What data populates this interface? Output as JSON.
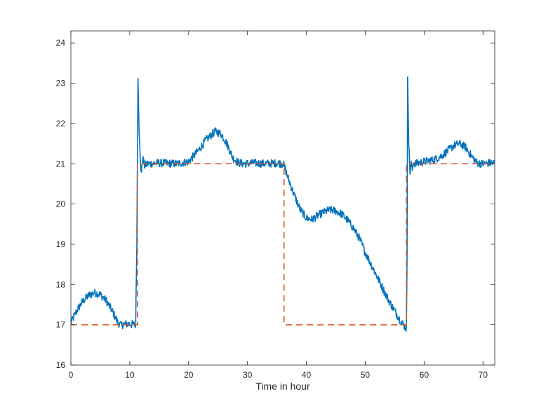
{
  "chart_data": {
    "type": "line",
    "title": "",
    "xlabel": "Time in hour",
    "ylabel": "",
    "xlim": [
      0,
      72
    ],
    "ylim": [
      16,
      24.3
    ],
    "x_ticks": [
      0,
      10,
      20,
      30,
      40,
      50,
      60,
      70
    ],
    "y_ticks": [
      16,
      17,
      18,
      19,
      20,
      21,
      22,
      23,
      24
    ],
    "grid": false,
    "legend": "none",
    "series": [
      {
        "style": "solid",
        "color": "#0072BD",
        "noise_amplitude": 0.1,
        "x": [
          0,
          1,
          2,
          3,
          4,
          5,
          6,
          7,
          8,
          8.6,
          9,
          10,
          11,
          11.2,
          11.4,
          11.6,
          11.8,
          12,
          12.2,
          12.5,
          13,
          15,
          18,
          20,
          21.5,
          23,
          24.5,
          25.5,
          26.5,
          27.5,
          28.5,
          29.5,
          31,
          33,
          35,
          36.1,
          37,
          38,
          39,
          40,
          41,
          42,
          43,
          44,
          45,
          46,
          47,
          48,
          49,
          50,
          52,
          54,
          56,
          57,
          57.1,
          57.2,
          57.4,
          57.6,
          57.8,
          58,
          58.2,
          58.5,
          59,
          60,
          61,
          62,
          63,
          64,
          65,
          66,
          67,
          68,
          69,
          70,
          71,
          72
        ],
        "y": [
          17.05,
          17.35,
          17.58,
          17.73,
          17.8,
          17.75,
          17.6,
          17.35,
          17.05,
          16.98,
          17.02,
          17.02,
          17.0,
          19.0,
          23.2,
          21.8,
          21.0,
          20.8,
          21.15,
          20.95,
          21.0,
          21.02,
          21.0,
          21.05,
          21.3,
          21.6,
          21.8,
          21.75,
          21.5,
          21.15,
          21.02,
          21.0,
          21.02,
          21.0,
          21.02,
          21.0,
          20.6,
          20.2,
          19.85,
          19.65,
          19.62,
          19.72,
          19.8,
          19.85,
          19.83,
          19.75,
          19.6,
          19.4,
          19.15,
          18.8,
          18.2,
          17.6,
          17.1,
          16.9,
          18.5,
          23.2,
          21.5,
          20.8,
          21.0,
          20.85,
          21.05,
          21.0,
          21.02,
          21.05,
          21.08,
          21.12,
          21.2,
          21.32,
          21.45,
          21.5,
          21.42,
          21.2,
          21.02,
          21.0,
          21.02,
          21.02
        ]
      },
      {
        "style": "dashed",
        "color": "#D95319",
        "x": [
          0,
          11.3,
          11.3,
          36.2,
          36.2,
          57.0,
          57.0,
          72
        ],
        "y": [
          17,
          17,
          21,
          21,
          17,
          17,
          21,
          21
        ]
      }
    ]
  }
}
